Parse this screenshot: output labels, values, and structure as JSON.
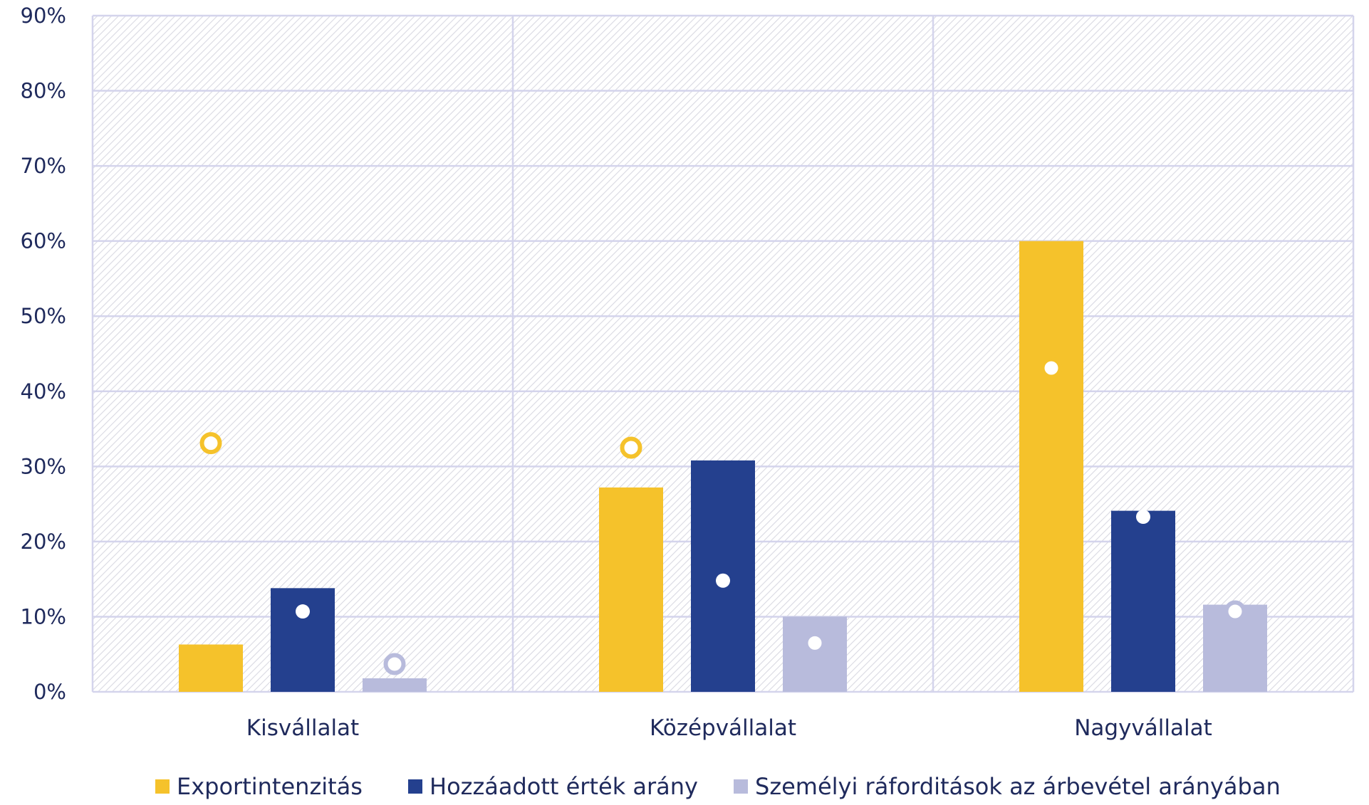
{
  "chart_data": {
    "type": "bar",
    "title": "",
    "xlabel": "",
    "ylabel": "",
    "ylim": [
      0,
      90
    ],
    "yticks": [
      "0%",
      "10%",
      "20%",
      "30%",
      "40%",
      "50%",
      "60%",
      "70%",
      "80%",
      "90%"
    ],
    "categories": [
      "Kisvállalat",
      "Középvállalat",
      "Nagyvállalat"
    ],
    "series": [
      {
        "name": "Exportintenzitás",
        "color": "#f5c22b",
        "values": [
          6.3,
          27.2,
          60.0
        ]
      },
      {
        "name": "Hozzáadott érték arány",
        "color": "#24408e",
        "values": [
          13.8,
          30.8,
          24.1
        ]
      },
      {
        "name": "Személyi ráforditások az árbevétel arányában",
        "color": "#b8bbdc",
        "values": [
          1.8,
          10.0,
          11.6
        ]
      }
    ],
    "markers": [
      {
        "series": "Exportintenzitás",
        "style": "ring",
        "values": [
          33.1,
          32.5,
          43.1
        ]
      },
      {
        "series": "Hozzáadott érték arány",
        "style": "dot",
        "values": [
          10.7,
          14.8,
          23.3
        ]
      },
      {
        "series": "Személyi ráforditások az árbevétel arányában",
        "style": "ring",
        "values": [
          3.7,
          6.5,
          10.7
        ]
      }
    ],
    "grid": true,
    "legend": "bottom"
  }
}
